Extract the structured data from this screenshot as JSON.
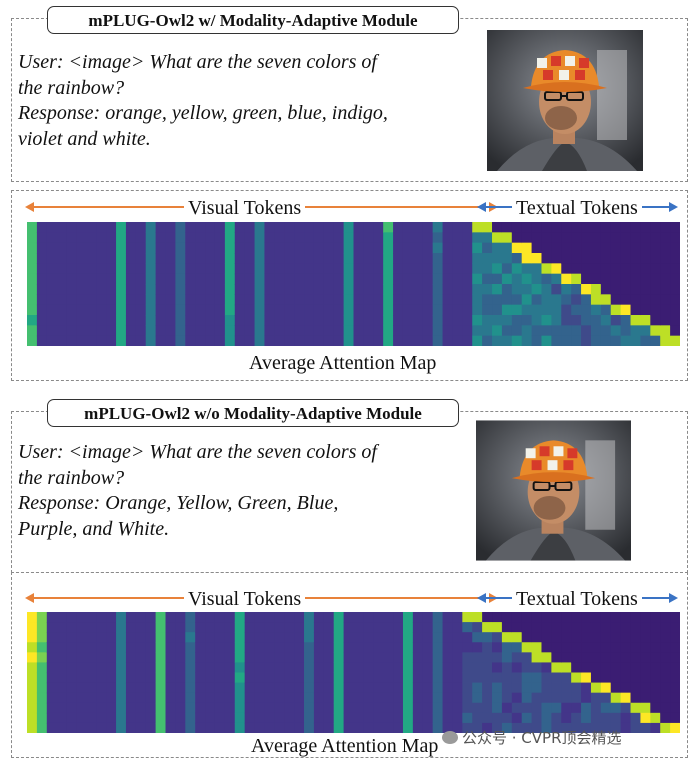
{
  "panels": [
    {
      "title": "mPLUG-Owl2 w/ Modality-Adaptive Module",
      "user_lines": [
        "User: <image> What are the seven colors of",
        "the rainbow?"
      ],
      "response_lines": [
        "Response: orange, yellow, green, blue, indigo,",
        "violet and white."
      ],
      "visual_label": "Visual Tokens",
      "textual_label": "Textual Tokens",
      "map_caption": "Average Attention Map"
    },
    {
      "title": "mPLUG-Owl2 w/o Modality-Adaptive Module",
      "user_lines": [
        "User: <image> What are the seven colors of",
        "the rainbow?"
      ],
      "response_lines": [
        "Response: Orange, Yellow, Green, Blue,",
        "Purple, and White."
      ],
      "visual_label": "Visual Tokens",
      "textual_label": "Textual Tokens",
      "map_caption": "Average Attention Map"
    }
  ],
  "watermark": "公众号 · CVPR顶会精选",
  "colors": {
    "arrow_visual": "#e8823a",
    "arrow_textual": "#3a73c4",
    "map_base": "#3b1d73"
  }
}
